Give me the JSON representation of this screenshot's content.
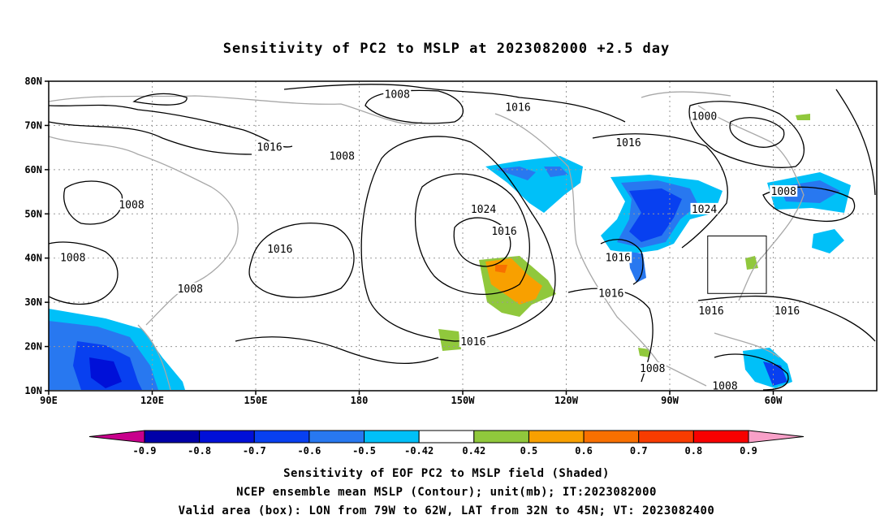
{
  "title": "Sensitivity of PC2 to MSLP at 2023082000 +2.5 day",
  "y_ticks": [
    {
      "label": "80N",
      "lat": 80
    },
    {
      "label": "70N",
      "lat": 70
    },
    {
      "label": "60N",
      "lat": 60
    },
    {
      "label": "50N",
      "lat": 50
    },
    {
      "label": "40N",
      "lat": 40
    },
    {
      "label": "30N",
      "lat": 30
    },
    {
      "label": "20N",
      "lat": 20
    },
    {
      "label": "10N",
      "lat": 10
    }
  ],
  "x_ticks": [
    {
      "label": "90E",
      "lon": 90
    },
    {
      "label": "120E",
      "lon": 120
    },
    {
      "label": "150E",
      "lon": 150
    },
    {
      "label": "180",
      "lon": 180
    },
    {
      "label": "150W",
      "lon": 210
    },
    {
      "label": "120W",
      "lon": 240
    },
    {
      "label": "90W",
      "lon": 270
    },
    {
      "label": "60W",
      "lon": 300
    }
  ],
  "contour_labels": [
    {
      "text": "1008",
      "lon": 191,
      "lat": 77
    },
    {
      "text": "1016",
      "lon": 226,
      "lat": 74
    },
    {
      "text": "1000",
      "lon": 280,
      "lat": 72
    },
    {
      "text": "1016",
      "lon": 154,
      "lat": 65
    },
    {
      "text": "1008",
      "lon": 175,
      "lat": 63
    },
    {
      "text": "1016",
      "lon": 258,
      "lat": 66
    },
    {
      "text": "1008",
      "lon": 114,
      "lat": 52
    },
    {
      "text": "1008",
      "lon": 303,
      "lat": 55
    },
    {
      "text": "1024",
      "lon": 216,
      "lat": 51
    },
    {
      "text": "1024",
      "lon": 280,
      "lat": 51
    },
    {
      "text": "1016",
      "lon": 222,
      "lat": 46
    },
    {
      "text": "1016",
      "lon": 157,
      "lat": 42
    },
    {
      "text": "1008",
      "lon": 97,
      "lat": 40
    },
    {
      "text": "1016",
      "lon": 255,
      "lat": 40
    },
    {
      "text": "1008",
      "lon": 131,
      "lat": 33
    },
    {
      "text": "1016",
      "lon": 253,
      "lat": 32
    },
    {
      "text": "1016",
      "lon": 282,
      "lat": 28
    },
    {
      "text": "1016",
      "lon": 304,
      "lat": 28
    },
    {
      "text": "1016",
      "lon": 213,
      "lat": 21
    },
    {
      "text": "1008",
      "lon": 265,
      "lat": 15
    },
    {
      "text": "1008",
      "lon": 286,
      "lat": 11
    }
  ],
  "valid_box": {
    "lon_w": 79,
    "lon_e": 62,
    "lat_s": 32,
    "lat_n": 45
  },
  "colorbar": {
    "bins": [
      {
        "color": "#c8008c"
      },
      {
        "color": "#0000a8"
      },
      {
        "color": "#0010d8"
      },
      {
        "color": "#0840f0"
      },
      {
        "color": "#2878f0"
      },
      {
        "color": "#00c0f8"
      },
      {
        "color": "#ffffff"
      },
      {
        "color": "#90c83c"
      },
      {
        "color": "#f8a000"
      },
      {
        "color": "#f87000"
      },
      {
        "color": "#f83c00"
      },
      {
        "color": "#f80000"
      },
      {
        "color": "#f8a0c8"
      }
    ],
    "labels": [
      "-0.9",
      "-0.8",
      "-0.7",
      "-0.6",
      "-0.5",
      "-0.42",
      "0.42",
      "0.5",
      "0.6",
      "0.7",
      "0.8",
      "0.9"
    ]
  },
  "footer": {
    "line1": "Sensitivity of EOF PC2 to MSLP field (Shaded)",
    "line2": "NCEP ensemble mean MSLP (Contour); unit(mb); IT:2023082000",
    "line3": "Valid area (box): LON from 79W to 62W, LAT from 32N to 45N; VT: 2023082400"
  }
}
